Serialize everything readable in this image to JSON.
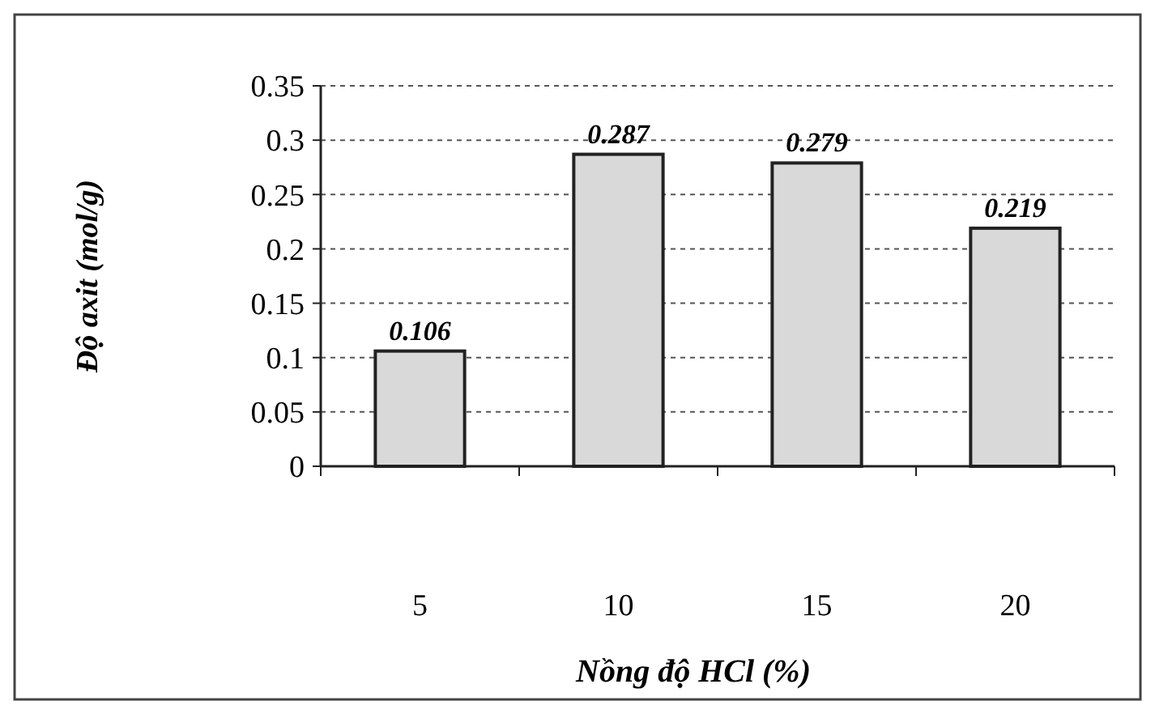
{
  "chart_data": {
    "type": "bar",
    "xlabel": "Nồng độ HCl (%)",
    "ylabel": "Độ axit (mol/g)",
    "categories": [
      "5",
      "10",
      "15",
      "20"
    ],
    "values": [
      0.106,
      0.287,
      0.279,
      0.219
    ],
    "color": "#d9d9d9",
    "ylim": [
      0,
      0.35
    ],
    "yticks": [
      0,
      0.05,
      0.1,
      0.15,
      0.2,
      0.25,
      0.3,
      0.35
    ],
    "grid": "y",
    "data_labels": true
  }
}
